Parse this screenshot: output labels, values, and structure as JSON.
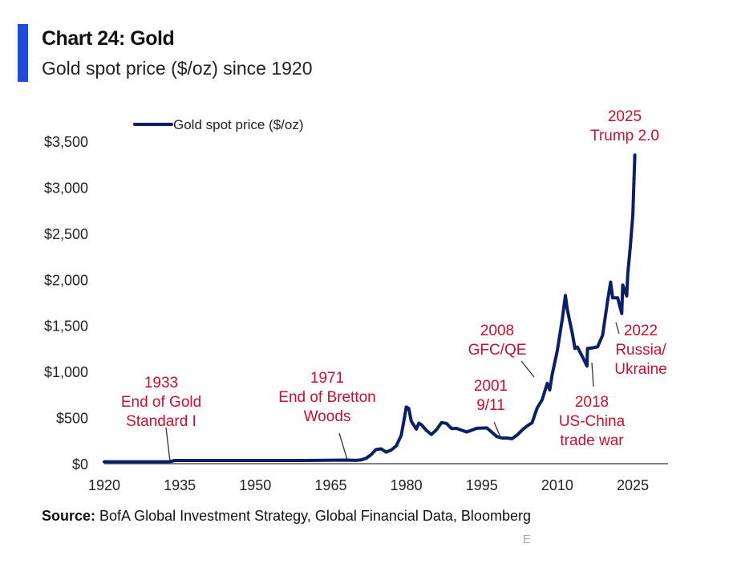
{
  "header": {
    "title": "Chart 24: Gold",
    "subtitle": "Gold spot price ($/oz) since 1920"
  },
  "footer": {
    "source_label": "Source:",
    "source_text": " BofA Global Investment Strategy, Global Financial Data, Bloomberg",
    "mark": "E"
  },
  "colors": {
    "series": "#0b1f66",
    "annotation": "#c8102e",
    "title_bar": "#1f4bd6"
  },
  "chart_data": {
    "type": "line",
    "title": "Chart 24: Gold",
    "subtitle": "Gold spot price ($/oz) since 1920",
    "xlabel": "",
    "ylabel": "",
    "xlim": [
      1920,
      2032
    ],
    "ylim": [
      0,
      3500
    ],
    "x_ticks": [
      1920,
      1935,
      1950,
      1965,
      1980,
      1995,
      2010,
      2025
    ],
    "x_tick_labels": [
      "1920",
      "1935",
      "1950",
      "1965",
      "1980",
      "1995",
      "2010",
      "2025"
    ],
    "y_ticks": [
      0,
      500,
      1000,
      1500,
      2000,
      2500,
      3000,
      3500
    ],
    "y_tick_labels": [
      "$0",
      "$500",
      "$1,000",
      "$1,500",
      "$2,000",
      "$2,500",
      "$3,000",
      "$3,500"
    ],
    "grid": false,
    "legend": {
      "position": "top-left",
      "entries": [
        "Gold spot price ($/oz)"
      ]
    },
    "series": [
      {
        "name": "Gold spot price ($/oz)",
        "x": [
          1920,
          1933,
          1934,
          1940,
          1950,
          1960,
          1968,
          1970,
          1971,
          1972,
          1973,
          1974,
          1975,
          1976,
          1977,
          1978,
          1979,
          1979.5,
          1980,
          1980.5,
          1981,
          1982,
          1982.5,
          1983,
          1984,
          1985,
          1986,
          1987,
          1988,
          1989,
          1990,
          1992,
          1994,
          1996,
          1998,
          1999,
          2000,
          2001,
          2002,
          2003,
          2004,
          2005,
          2006,
          2007,
          2008,
          2008.5,
          2009,
          2010,
          2011,
          2011.6,
          2012,
          2013,
          2013.5,
          2014,
          2015,
          2015.9,
          2016,
          2017,
          2018,
          2019,
          2020,
          2020.6,
          2021,
          2022,
          2022.8,
          2023,
          2023.8,
          2024,
          2024.5,
          2025,
          2025.4
        ],
        "y": [
          20.67,
          20.67,
          35,
          35,
          35,
          35,
          39,
          36,
          41,
          58,
          97,
          154,
          161,
          125,
          148,
          193,
          307,
          460,
          615,
          600,
          460,
          375,
          440,
          424,
          361,
          317,
          368,
          447,
          437,
          381,
          383,
          344,
          384,
          388,
          294,
          279,
          279,
          271,
          310,
          364,
          410,
          445,
          604,
          696,
          872,
          800,
          972,
          1225,
          1572,
          1825,
          1669,
          1411,
          1250,
          1266,
          1160,
          1060,
          1250,
          1257,
          1268,
          1393,
          1770,
          1970,
          1800,
          1800,
          1630,
          1940,
          1820,
          2060,
          2350,
          2700,
          3350
        ]
      }
    ],
    "annotations": [
      {
        "year": 1933,
        "lines": [
          "1933",
          "End of Gold",
          "Standard I"
        ]
      },
      {
        "year": 1971,
        "lines": [
          "1971",
          "End of Bretton",
          "Woods"
        ]
      },
      {
        "year": 2001,
        "lines": [
          "2001",
          "9/11"
        ]
      },
      {
        "year": 2008,
        "lines": [
          "2008",
          "GFC/QE"
        ]
      },
      {
        "year": 2018,
        "lines": [
          "2018",
          "US-China",
          "trade war"
        ]
      },
      {
        "year": 2022,
        "lines": [
          "2022",
          "Russia/",
          "Ukraine"
        ]
      },
      {
        "year": 2025,
        "lines": [
          "2025",
          "Trump 2.0"
        ]
      }
    ]
  }
}
